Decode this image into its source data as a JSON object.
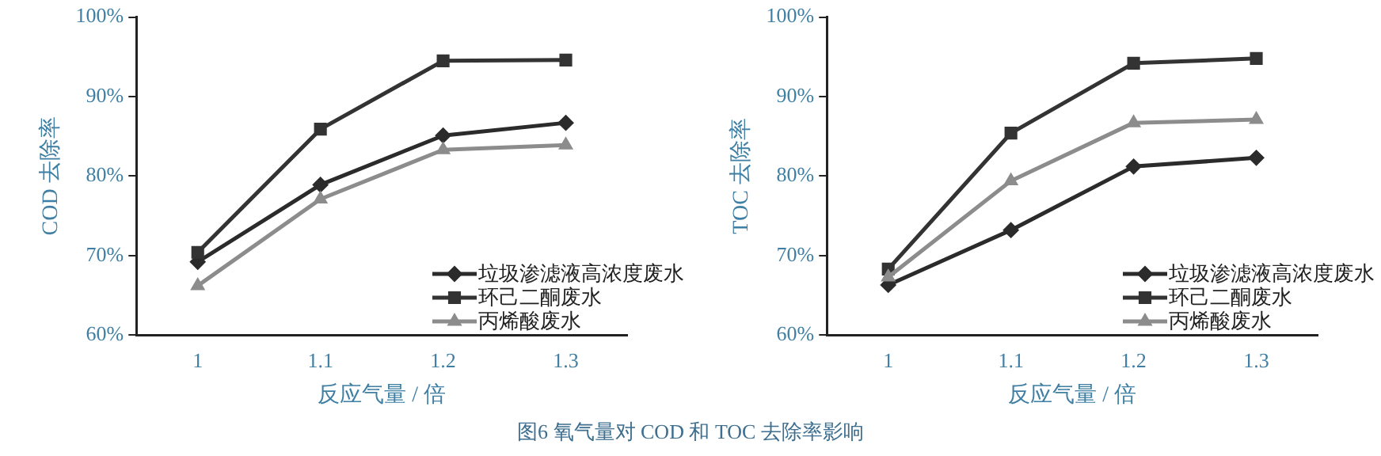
{
  "chart_data": [
    {
      "type": "line",
      "xlabel": "反应气量 / 倍",
      "ylabel": "COD 去除率",
      "categories": [
        "1",
        "1.1",
        "1.2",
        "1.3"
      ],
      "series": [
        {
          "name": "垃圾渗滤液高浓度废水",
          "color": "#2b2b2b",
          "marker": "diamond",
          "values": [
            69.2,
            78.9,
            85.1,
            86.7
          ]
        },
        {
          "name": "环己二酮废水",
          "color": "#333333",
          "marker": "square",
          "values": [
            70.4,
            85.9,
            94.5,
            94.6
          ]
        },
        {
          "name": "丙烯酸废水",
          "color": "#8c8c8c",
          "marker": "triangle",
          "values": [
            66.2,
            77.1,
            83.3,
            83.9
          ]
        }
      ],
      "ylim": [
        60,
        100
      ],
      "yticks": [
        {
          "value": 60,
          "label": "60%"
        },
        {
          "value": 70,
          "label": "70%"
        },
        {
          "value": 80,
          "label": "80%"
        },
        {
          "value": 90,
          "label": "90%"
        },
        {
          "value": 100,
          "label": "100%"
        }
      ],
      "grid": false,
      "legend": "bottom right",
      "line_style": "solid",
      "annotations": [
        "图6  氧气量对 COD 和 TOC 去除率影响"
      ]
    },
    {
      "type": "line",
      "xlabel": "反应气量 / 倍",
      "ylabel": "TOC 去除率",
      "categories": [
        "1",
        "1.1",
        "1.2",
        "1.3"
      ],
      "series": [
        {
          "name": "垃圾渗滤液高浓度废水",
          "color": "#2b2b2b",
          "marker": "diamond",
          "values": [
            66.3,
            73.2,
            81.2,
            82.3
          ]
        },
        {
          "name": "环己二酮废水",
          "color": "#333333",
          "marker": "square",
          "values": [
            68.3,
            85.4,
            94.2,
            94.8
          ]
        },
        {
          "name": "丙烯酸废水",
          "color": "#8c8c8c",
          "marker": "triangle",
          "values": [
            67.3,
            79.4,
            86.7,
            87.1
          ]
        }
      ],
      "ylim": [
        60,
        100
      ],
      "yticks": [
        {
          "value": 60,
          "label": "60%"
        },
        {
          "value": 70,
          "label": "70%"
        },
        {
          "value": 80,
          "label": "80%"
        },
        {
          "value": 90,
          "label": "90%"
        },
        {
          "value": 100,
          "label": "100%"
        }
      ],
      "grid": false,
      "legend": "bottom right",
      "line_style": "solid"
    }
  ]
}
